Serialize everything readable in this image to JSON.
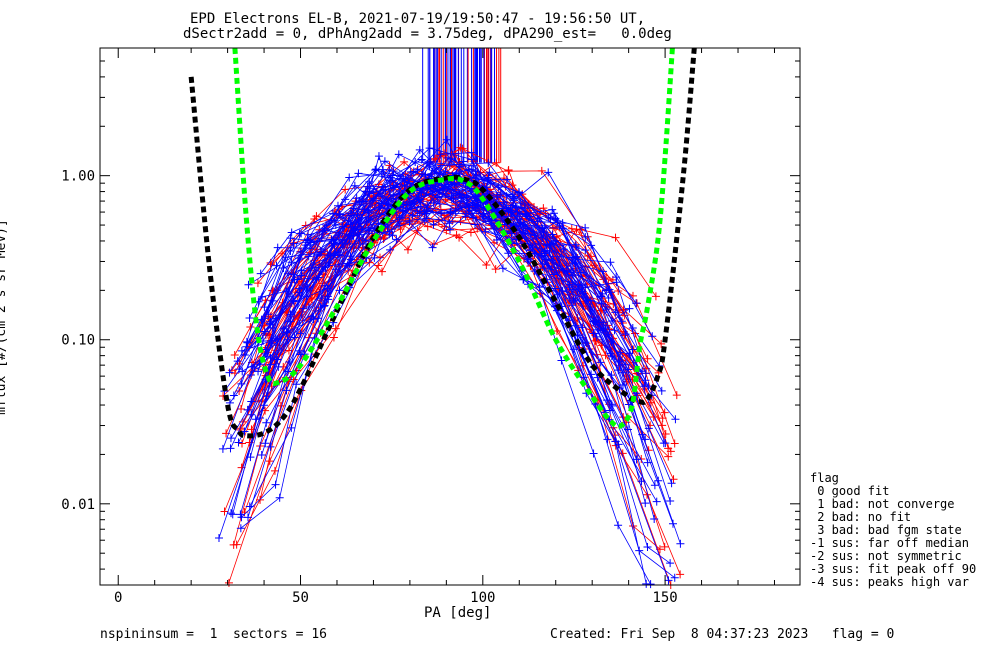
{
  "header": {
    "title_line1": "EPD Electrons EL-B, 2021-07-19/19:50:47 - 19:56:50 UT,",
    "title_line2": "dSectr2add = 0, dPhAng2add = 3.75deg, dPA290_est=   0.0deg"
  },
  "footer": {
    "left": "nspininsum =  1  sectors = 16",
    "right": "Created: Fri Sep  8 04:37:23 2023   flag = 0"
  },
  "legend": {
    "title": "flag",
    "items": [
      " 0 good fit",
      " 1 bad: not converge",
      " 2 bad: no fit",
      " 3 bad: bad fgm state",
      "-1 sus: far off median",
      "-2 sus: not symmetric",
      "-3 sus: fit peak off 90",
      "-4 sus: peaks high var"
    ]
  },
  "colors": {
    "series_a": "#ff0000",
    "series_b": "#0000ff",
    "fit_black": "#000000",
    "fit_green": "#00ff00"
  },
  "chart_data": {
    "type": "scatter",
    "xlabel": "PA [deg]",
    "ylabel": "mflux [#/(cm^2 s sr MeV)]",
    "x_range": [
      -5,
      187
    ],
    "y_range": [
      0.0032,
      6.0
    ],
    "y_scale": "log",
    "x_ticks": [
      0,
      50,
      100,
      150
    ],
    "x_tick_labels": [
      "0",
      "50",
      "100",
      "150"
    ],
    "y_ticks": [
      0.01,
      0.1,
      1.0
    ],
    "y_tick_labels": [
      "0.01",
      "0.10",
      "1.00"
    ],
    "grid": false,
    "legend_placement": "right",
    "series": [
      {
        "color": "#ff0000",
        "marker": "+",
        "note": "many per-sector pitch-angle distributions (red)",
        "peak_range": [
          0.55,
          1.25
        ],
        "low_pa_range": [
          0.003,
          0.03
        ],
        "high_pa_range": [
          0.003,
          0.09
        ]
      },
      {
        "color": "#0000ff",
        "marker": "+",
        "note": "many per-sector pitch-angle distributions (blue)",
        "peak_range": [
          0.5,
          1.1
        ],
        "low_pa_range": [
          0.0045,
          0.17
        ],
        "high_pa_range": [
          0.006,
          0.2
        ]
      }
    ],
    "fits": [
      {
        "color": "#000000",
        "style": "dashed-thick",
        "x": [
          20,
          25,
          30,
          33,
          35,
          40,
          45,
          50,
          60,
          70,
          80,
          90,
          95,
          100,
          110,
          120,
          130,
          140,
          143,
          145,
          148,
          150,
          155,
          158
        ],
        "y": [
          4.0,
          0.28,
          0.04,
          0.028,
          0.026,
          0.027,
          0.033,
          0.05,
          0.15,
          0.42,
          0.82,
          0.97,
          0.95,
          0.82,
          0.42,
          0.17,
          0.07,
          0.045,
          0.042,
          0.043,
          0.06,
          0.1,
          1.0,
          6.0
        ]
      },
      {
        "color": "#00ff00",
        "style": "dashed-thick",
        "x": [
          32,
          35,
          38,
          41,
          44,
          50,
          60,
          70,
          80,
          90,
          95,
          100,
          110,
          120,
          130,
          135,
          138,
          141,
          143,
          145,
          148,
          150,
          152
        ],
        "y": [
          6.0,
          0.6,
          0.12,
          0.06,
          0.055,
          0.07,
          0.16,
          0.4,
          0.8,
          0.95,
          0.92,
          0.72,
          0.3,
          0.1,
          0.045,
          0.032,
          0.03,
          0.04,
          0.09,
          0.15,
          0.4,
          1.3,
          6.0
        ]
      }
    ],
    "spikes": {
      "x_range": [
        83,
        105
      ],
      "y_start": 1.2,
      "colors": [
        "#ff0000",
        "#0000ff"
      ]
    }
  }
}
